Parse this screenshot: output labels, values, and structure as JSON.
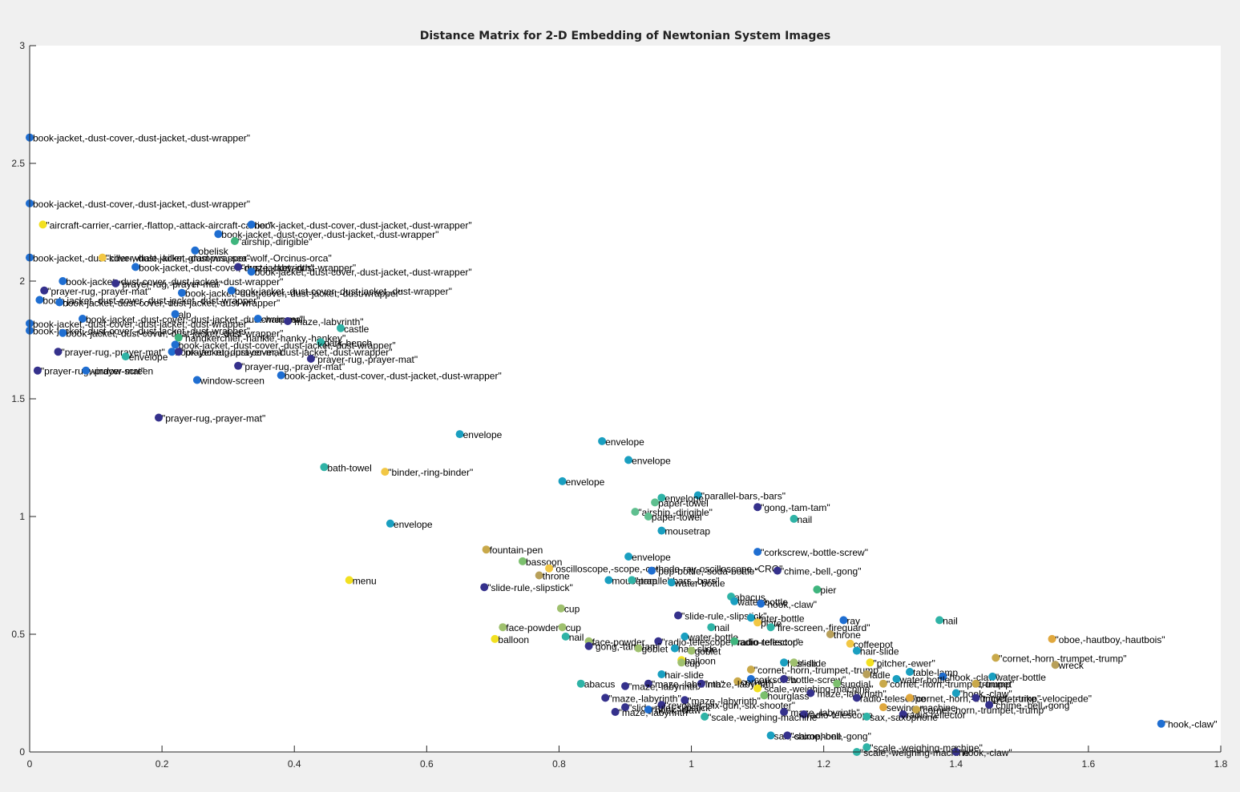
{
  "chart_data": {
    "type": "scatter",
    "title": "Distance Matrix for 2-D Embedding of Newtonian System Images",
    "xlim": [
      0,
      1.8
    ],
    "ylim": [
      0,
      3
    ],
    "xticks": [
      0,
      0.2,
      0.4,
      0.6,
      0.8,
      1,
      1.2,
      1.4,
      1.6,
      1.8
    ],
    "yticks": [
      0,
      0.5,
      1,
      1.5,
      2,
      2.5,
      3
    ],
    "xtick_labels": [
      "0",
      "0.2",
      "0.4",
      "0.6",
      "0.8",
      "1",
      "1.2",
      "1.4",
      "1.6",
      "1.8"
    ],
    "ytick_labels": [
      "0",
      "0.5",
      "1",
      "1.5",
      "2",
      "2.5",
      "3"
    ],
    "grid": false,
    "colors": {
      "background": "#f0f0f0",
      "axes_bg": "#ffffff",
      "axis": "#262626"
    },
    "points": [
      {
        "x": 0.0,
        "y": 2.61,
        "label": "book-jacket,-dust-cover,-dust-jacket,-dust-wrapper\"",
        "color": "#1f6ed1"
      },
      {
        "x": 0.0,
        "y": 2.33,
        "label": "book-jacket,-dust-cover,-dust-jacket,-dust-wrapper\"",
        "color": "#1f6ed1"
      },
      {
        "x": 0.02,
        "y": 2.24,
        "label": "\"aircraft-carrier,-carrier,-flattop,-attack-aircraft-carrier\"",
        "color": "#f2e021"
      },
      {
        "x": 0.335,
        "y": 2.24,
        "label": "book-jacket,-dust-cover,-dust-jacket,-dust-wrapper\"",
        "color": "#1f6ed1"
      },
      {
        "x": 0.285,
        "y": 2.2,
        "label": "book-jacket,-dust-cover,-dust-jacket,-dust-wrapper\"",
        "color": "#1f6ed1"
      },
      {
        "x": 0.31,
        "y": 2.17,
        "label": "\"airship,-dirigible\"",
        "color": "#3fb57e"
      },
      {
        "x": 0.25,
        "y": 2.13,
        "label": "obelisk",
        "color": "#1f6ed1"
      },
      {
        "x": 0.0,
        "y": 2.1,
        "label": "book-jacket,-dust-cover,-dust-jacket,-dust-wrapper\"",
        "color": "#1f6ed1"
      },
      {
        "x": 0.11,
        "y": 2.1,
        "label": "\"killer-whale,-killer,-grampus,-sea-wolf,-Orcinus-orca\"",
        "color": "#f2c744"
      },
      {
        "x": 0.16,
        "y": 2.06,
        "label": "book-jacket,-dust-cover,-dust-jacket,-dust-wrapper\"",
        "color": "#1f6ed1"
      },
      {
        "x": 0.315,
        "y": 2.06,
        "label": "\"maze,-labyrinth\"",
        "color": "#35318c"
      },
      {
        "x": 0.335,
        "y": 2.04,
        "label": "book-jacket,-dust-cover,-dust-jacket,-dust-wrapper\"",
        "color": "#1f6ed1"
      },
      {
        "x": 0.05,
        "y": 2.0,
        "label": "book-jacket,-dust-cover,-dust-jacket,-dust-wrapper\"",
        "color": "#1f6ed1"
      },
      {
        "x": 0.13,
        "y": 1.99,
        "label": "\"prayer-rug,-prayer-mat\"",
        "color": "#35318c"
      },
      {
        "x": 0.022,
        "y": 1.96,
        "label": "\"prayer-rug,-prayer-mat\"",
        "color": "#35318c"
      },
      {
        "x": 0.23,
        "y": 1.95,
        "label": "book-jacket,-dust-cover,-dust-jacket,-dust-wrapper\"",
        "color": "#1f6ed1"
      },
      {
        "x": 0.305,
        "y": 1.96,
        "label": "book-jacket,-dust-cover,-dust-jacket,-dust-wrapper\"",
        "color": "#1f6ed1"
      },
      {
        "x": 0.015,
        "y": 1.92,
        "label": "book-jacket,-dust-cover,-dust-jacket,-dust-wrapper\"",
        "color": "#1f6ed1"
      },
      {
        "x": 0.045,
        "y": 1.91,
        "label": "book-jacket,-dust-cover,-dust-jacket,-dust-wrapper\"",
        "color": "#1f6ed1"
      },
      {
        "x": 0.22,
        "y": 1.86,
        "label": "alp",
        "color": "#1f6ed1"
      },
      {
        "x": 0.08,
        "y": 1.84,
        "label": "book-jacket,-dust-cover,-dust-jacket,-dust-wrapper\"",
        "color": "#1f6ed1"
      },
      {
        "x": 0.345,
        "y": 1.84,
        "label": "chain-mail",
        "color": "#1f6ed1"
      },
      {
        "x": 0.39,
        "y": 1.83,
        "label": "\"maze,-labyrinth\"",
        "color": "#35318c"
      },
      {
        "x": 0.0,
        "y": 1.82,
        "label": "book-jacket,-dust-cover,-dust-jacket,-dust-wrapper\"",
        "color": "#1f6ed1"
      },
      {
        "x": 0.47,
        "y": 1.8,
        "label": "castle",
        "color": "#2fb3a6"
      },
      {
        "x": 0.0,
        "y": 1.79,
        "label": "book-jacket,-dust-cover,-dust-jacket,-dust-wrapper\"",
        "color": "#1f6ed1"
      },
      {
        "x": 0.05,
        "y": 1.78,
        "label": "book-jacket,-dust-cover,-dust-jacket,-dust-wrapper\"",
        "color": "#1f6ed1"
      },
      {
        "x": 0.225,
        "y": 1.76,
        "label": "\"handkerchief,-hankie,-hanky,-hankey\"",
        "color": "#3fb57e"
      },
      {
        "x": 0.44,
        "y": 1.74,
        "label": "park-bench",
        "color": "#2fb3a6"
      },
      {
        "x": 0.22,
        "y": 1.73,
        "label": "book-jacket,-dust-cover,-dust-jacket,-dust-wrapper\"",
        "color": "#1f6ed1"
      },
      {
        "x": 0.043,
        "y": 1.7,
        "label": "\"prayer-rug,-prayer-mat\"",
        "color": "#35318c"
      },
      {
        "x": 0.215,
        "y": 1.7,
        "label": "book-jacket,-dust-cover,-dust-jacket,-dust-wrapper\"",
        "color": "#1f6ed1"
      },
      {
        "x": 0.225,
        "y": 1.7,
        "label": "\"prayer-rug,-prayer-mat\"",
        "color": "#35318c"
      },
      {
        "x": 0.145,
        "y": 1.68,
        "label": "envelope",
        "color": "#2fb3a6"
      },
      {
        "x": 0.425,
        "y": 1.67,
        "label": "\"prayer-rug,-prayer-mat\"",
        "color": "#35318c"
      },
      {
        "x": 0.315,
        "y": 1.64,
        "label": "\"prayer-rug,-prayer-mat\"",
        "color": "#35318c"
      },
      {
        "x": 0.012,
        "y": 1.62,
        "label": "\"prayer-rug,-prayer-mat\"",
        "color": "#35318c"
      },
      {
        "x": 0.085,
        "y": 1.62,
        "label": "window-screen",
        "color": "#1f6ed1"
      },
      {
        "x": 0.38,
        "y": 1.6,
        "label": "book-jacket,-dust-cover,-dust-jacket,-dust-wrapper\"",
        "color": "#1f6ed1"
      },
      {
        "x": 0.253,
        "y": 1.58,
        "label": "window-screen",
        "color": "#1f6ed1"
      },
      {
        "x": 0.195,
        "y": 1.42,
        "label": "\"prayer-rug,-prayer-mat\"",
        "color": "#35318c"
      },
      {
        "x": 0.65,
        "y": 1.35,
        "label": "envelope",
        "color": "#1a9fc0"
      },
      {
        "x": 0.865,
        "y": 1.32,
        "label": "envelope",
        "color": "#1a9fc0"
      },
      {
        "x": 0.905,
        "y": 1.24,
        "label": "envelope",
        "color": "#1a9fc0"
      },
      {
        "x": 0.445,
        "y": 1.21,
        "label": "bath-towel",
        "color": "#2fb3a6"
      },
      {
        "x": 0.537,
        "y": 1.19,
        "label": "\"binder,-ring-binder\"",
        "color": "#f2c744"
      },
      {
        "x": 0.805,
        "y": 1.15,
        "label": "envelope",
        "color": "#1a9fc0"
      },
      {
        "x": 1.01,
        "y": 1.09,
        "label": "\"parallel-bars,-bars\"",
        "color": "#1a9fc0"
      },
      {
        "x": 0.955,
        "y": 1.08,
        "label": "envelope",
        "color": "#2fb3a6"
      },
      {
        "x": 0.945,
        "y": 1.06,
        "label": "paper-towel",
        "color": "#5fbf8f"
      },
      {
        "x": 1.1,
        "y": 1.04,
        "label": "\"gong,-tam-tam\"",
        "color": "#35318c"
      },
      {
        "x": 0.915,
        "y": 1.02,
        "label": "\"airship,-dirigible\"",
        "color": "#5fbf8f"
      },
      {
        "x": 0.935,
        "y": 1.0,
        "label": "paper-towel",
        "color": "#5fbf8f"
      },
      {
        "x": 1.155,
        "y": 0.99,
        "label": "nail",
        "color": "#2fb3a6"
      },
      {
        "x": 0.545,
        "y": 0.97,
        "label": "envelope",
        "color": "#1a9fc0"
      },
      {
        "x": 0.955,
        "y": 0.94,
        "label": "mousetrap",
        "color": "#1a9fc0"
      },
      {
        "x": 0.69,
        "y": 0.86,
        "label": "fountain-pen",
        "color": "#c9a94a"
      },
      {
        "x": 1.1,
        "y": 0.85,
        "label": "\"corkscrew,-bottle-screw\"",
        "color": "#1f6ed1"
      },
      {
        "x": 0.905,
        "y": 0.83,
        "label": "envelope",
        "color": "#1a9fc0"
      },
      {
        "x": 0.745,
        "y": 0.81,
        "label": "bassoon",
        "color": "#7cc06e"
      },
      {
        "x": 0.785,
        "y": 0.78,
        "label": "\"oscilloscope,-scope,-cathode-ray-oscilloscope,-CRO\"",
        "color": "#f2c744"
      },
      {
        "x": 0.94,
        "y": 0.77,
        "label": "\"pop-bottle,-soda-bottle\"",
        "color": "#1f6ed1"
      },
      {
        "x": 1.13,
        "y": 0.77,
        "label": "\"chime,-bell,-gong\"",
        "color": "#35318c"
      },
      {
        "x": 0.77,
        "y": 0.75,
        "label": "throne",
        "color": "#b8a05a"
      },
      {
        "x": 0.483,
        "y": 0.73,
        "label": "menu",
        "color": "#f2e021"
      },
      {
        "x": 0.875,
        "y": 0.73,
        "label": "mousetrap",
        "color": "#1a9fc0"
      },
      {
        "x": 0.91,
        "y": 0.73,
        "label": "\"parallel-bars,-bars\"",
        "color": "#2fb3a6"
      },
      {
        "x": 0.97,
        "y": 0.72,
        "label": "water-bottle",
        "color": "#1a9fc0"
      },
      {
        "x": 0.687,
        "y": 0.7,
        "label": "\"slide-rule,-slipstick\"",
        "color": "#35318c"
      },
      {
        "x": 1.19,
        "y": 0.69,
        "label": "pier",
        "color": "#3fb57e"
      },
      {
        "x": 1.06,
        "y": 0.66,
        "label": "abacus",
        "color": "#2fb3a6"
      },
      {
        "x": 1.065,
        "y": 0.64,
        "label": "water-bottle",
        "color": "#1a9fc0"
      },
      {
        "x": 1.105,
        "y": 0.63,
        "label": "\"hook,-claw\"",
        "color": "#1f6ed1"
      },
      {
        "x": 0.803,
        "y": 0.61,
        "label": "cup",
        "color": "#9fc06e"
      },
      {
        "x": 0.98,
        "y": 0.58,
        "label": "\"slide-rule,-slipstick\"",
        "color": "#35318c"
      },
      {
        "x": 1.09,
        "y": 0.57,
        "label": "water-bottle",
        "color": "#1a9fc0"
      },
      {
        "x": 1.23,
        "y": 0.56,
        "label": "ray",
        "color": "#1f6ed1"
      },
      {
        "x": 1.375,
        "y": 0.56,
        "label": "nail",
        "color": "#2fb3a6"
      },
      {
        "x": 1.1,
        "y": 0.55,
        "label": "plate",
        "color": "#f2c744"
      },
      {
        "x": 0.715,
        "y": 0.53,
        "label": "face-powder",
        "color": "#9fc06e"
      },
      {
        "x": 0.805,
        "y": 0.53,
        "label": "cup",
        "color": "#9fc06e"
      },
      {
        "x": 1.03,
        "y": 0.53,
        "label": "nail",
        "color": "#2fb3a6"
      },
      {
        "x": 1.12,
        "y": 0.53,
        "label": "\"fire-screen,-fireguard\"",
        "color": "#2fb3a6"
      },
      {
        "x": 1.21,
        "y": 0.5,
        "label": "throne",
        "color": "#b8a05a"
      },
      {
        "x": 0.99,
        "y": 0.49,
        "label": "water-bottle",
        "color": "#1a9fc0"
      },
      {
        "x": 0.703,
        "y": 0.48,
        "label": "balloon",
        "color": "#f2e021"
      },
      {
        "x": 0.81,
        "y": 0.49,
        "label": "nail",
        "color": "#2fb3a6"
      },
      {
        "x": 1.545,
        "y": 0.48,
        "label": "\"oboe,-hautboy,-hautbois\"",
        "color": "#e0a83e"
      },
      {
        "x": 0.845,
        "y": 0.47,
        "label": "face-powder",
        "color": "#9fc06e"
      },
      {
        "x": 0.95,
        "y": 0.47,
        "label": "\"radio-telescope,-radio-reflector\"",
        "color": "#35318c"
      },
      {
        "x": 1.065,
        "y": 0.47,
        "label": "radio-telescope",
        "color": "#3fb57e"
      },
      {
        "x": 1.24,
        "y": 0.46,
        "label": "coffeepot",
        "color": "#f2c744"
      },
      {
        "x": 0.845,
        "y": 0.45,
        "label": "\"gong,-tam-tam\"",
        "color": "#35318c"
      },
      {
        "x": 0.92,
        "y": 0.44,
        "label": "goblet",
        "color": "#9fc06e"
      },
      {
        "x": 0.975,
        "y": 0.44,
        "label": "hair-slide",
        "color": "#1a9fc0"
      },
      {
        "x": 1.0,
        "y": 0.43,
        "label": "goblet",
        "color": "#9fc06e"
      },
      {
        "x": 1.25,
        "y": 0.43,
        "label": "hair-slide",
        "color": "#1a9fc0"
      },
      {
        "x": 1.46,
        "y": 0.4,
        "label": "\"cornet,-horn,-trumpet,-trump\"",
        "color": "#c9a94a"
      },
      {
        "x": 0.985,
        "y": 0.39,
        "label": "balloon",
        "color": "#f2e021"
      },
      {
        "x": 0.985,
        "y": 0.38,
        "label": "cup",
        "color": "#9fc06e"
      },
      {
        "x": 1.14,
        "y": 0.38,
        "label": "hair-slide",
        "color": "#1a9fc0"
      },
      {
        "x": 1.155,
        "y": 0.38,
        "label": "slide",
        "color": "#9fc06e"
      },
      {
        "x": 1.27,
        "y": 0.38,
        "label": "\"pitcher,-ewer\"",
        "color": "#f2e021"
      },
      {
        "x": 1.55,
        "y": 0.37,
        "label": "wreck",
        "color": "#b8a05a"
      },
      {
        "x": 1.09,
        "y": 0.35,
        "label": "\"cornet,-horn,-trumpet,-trump\"",
        "color": "#c9a94a"
      },
      {
        "x": 1.33,
        "y": 0.34,
        "label": "table-lamp",
        "color": "#1a9fc0"
      },
      {
        "x": 0.955,
        "y": 0.33,
        "label": "hair-slide",
        "color": "#1a9fc0"
      },
      {
        "x": 1.265,
        "y": 0.33,
        "label": "ladle",
        "color": "#b8a05a"
      },
      {
        "x": 1.38,
        "y": 0.32,
        "label": "\"hook,-claw\"",
        "color": "#1f6ed1"
      },
      {
        "x": 1.455,
        "y": 0.32,
        "label": "water-bottle",
        "color": "#1a9fc0"
      },
      {
        "x": 1.09,
        "y": 0.31,
        "label": "corkscrew",
        "color": "#1f6ed1"
      },
      {
        "x": 1.14,
        "y": 0.31,
        "label": "\"bottle-screw\"",
        "color": "#35318c"
      },
      {
        "x": 1.31,
        "y": 0.31,
        "label": "water-bottle",
        "color": "#1a9fc0"
      },
      {
        "x": 1.07,
        "y": 0.3,
        "label": "cornet",
        "color": "#c9a94a"
      },
      {
        "x": 1.22,
        "y": 0.29,
        "label": "sundial",
        "color": "#7cc06e"
      },
      {
        "x": 0.935,
        "y": 0.29,
        "label": "\"maze,-labyrinth\"",
        "color": "#35318c"
      },
      {
        "x": 1.015,
        "y": 0.29,
        "label": "\"maze,-labyrinth\"",
        "color": "#35318c"
      },
      {
        "x": 1.29,
        "y": 0.29,
        "label": "\"cornet,-horn,-trumpet,-trump\"",
        "color": "#c9a94a"
      },
      {
        "x": 1.43,
        "y": 0.29,
        "label": "trumpet",
        "color": "#c9a94a"
      },
      {
        "x": 0.833,
        "y": 0.29,
        "label": "abacus",
        "color": "#2fb3a6"
      },
      {
        "x": 0.9,
        "y": 0.28,
        "label": "\"maze,-labyrinth\"",
        "color": "#35318c"
      },
      {
        "x": 1.1,
        "y": 0.27,
        "label": "\"scale,-weighing-machine\"",
        "color": "#f2e021"
      },
      {
        "x": 1.18,
        "y": 0.25,
        "label": "\"maze,-labyrinth\"",
        "color": "#35318c"
      },
      {
        "x": 1.4,
        "y": 0.25,
        "label": "\"hook,-claw\"",
        "color": "#1a9fc0"
      },
      {
        "x": 1.11,
        "y": 0.24,
        "label": "hourglass",
        "color": "#7cc06e"
      },
      {
        "x": 1.25,
        "y": 0.23,
        "label": "radio-telescope",
        "color": "#35318c"
      },
      {
        "x": 1.33,
        "y": 0.23,
        "label": "\"cornet,-horn,-trumpet,-trump\"",
        "color": "#e0a83e"
      },
      {
        "x": 1.43,
        "y": 0.23,
        "label": "\"tricycle,-trike,-velocipede\"",
        "color": "#35318c"
      },
      {
        "x": 0.87,
        "y": 0.23,
        "label": "\"maze,-labyrinth\"",
        "color": "#35318c"
      },
      {
        "x": 0.99,
        "y": 0.22,
        "label": "\"maze,-labyrinth\"",
        "color": "#35318c"
      },
      {
        "x": 0.955,
        "y": 0.2,
        "label": "\"revolver,-six-gun,-six-shooter\"",
        "color": "#35318c"
      },
      {
        "x": 1.29,
        "y": 0.19,
        "label": "sewing-machine",
        "color": "#e0a83e"
      },
      {
        "x": 1.45,
        "y": 0.2,
        "label": "\"chime,-bell,-gong\"",
        "color": "#35318c"
      },
      {
        "x": 1.34,
        "y": 0.18,
        "label": "\"cornet,-horn,-trumpet,-trump\"",
        "color": "#c9a94a"
      },
      {
        "x": 0.9,
        "y": 0.19,
        "label": "\"slide-rule,-slipstick\"",
        "color": "#35318c"
      },
      {
        "x": 0.935,
        "y": 0.18,
        "label": "\"hook,-claw\"",
        "color": "#1f6ed1"
      },
      {
        "x": 1.14,
        "y": 0.17,
        "label": "\"maze,-labyrinth\"",
        "color": "#35318c"
      },
      {
        "x": 0.885,
        "y": 0.17,
        "label": "\"maze,-labyrinth\"",
        "color": "#35318c"
      },
      {
        "x": 1.17,
        "y": 0.16,
        "label": "radio-telescope",
        "color": "#35318c"
      },
      {
        "x": 1.32,
        "y": 0.16,
        "label": "radio-reflector",
        "color": "#35318c"
      },
      {
        "x": 1.02,
        "y": 0.15,
        "label": "\"scale,-weighing-machine\"",
        "color": "#2fb3a6"
      },
      {
        "x": 1.265,
        "y": 0.15,
        "label": "sax,-saxophone",
        "color": "#2fb3a6"
      },
      {
        "x": 1.71,
        "y": 0.12,
        "label": "\"hook,-claw\"",
        "color": "#1f6ed1"
      },
      {
        "x": 1.12,
        "y": 0.07,
        "label": "sax,-saxophone",
        "color": "#1a9fc0"
      },
      {
        "x": 1.145,
        "y": 0.07,
        "label": "\"chime,-bell,-gong\"",
        "color": "#35318c"
      },
      {
        "x": 1.265,
        "y": 0.02,
        "label": "\"scale,-weighing-machine\"",
        "color": "#2fb3a6"
      },
      {
        "x": 1.25,
        "y": 0.0,
        "label": "\"scale,-weighing-machine\"",
        "color": "#2fb3a6"
      },
      {
        "x": 1.4,
        "y": 0.0,
        "label": "\"hook,-claw\"",
        "color": "#35318c"
      }
    ]
  }
}
